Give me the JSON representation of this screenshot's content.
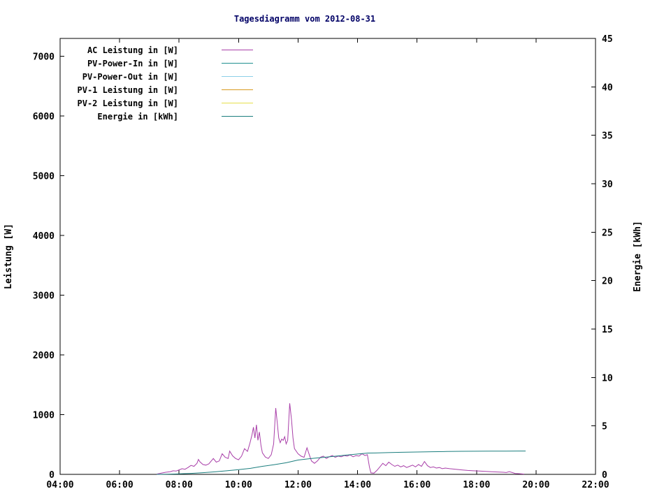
{
  "page": {
    "background": "#ffffff"
  },
  "chart_data": {
    "type": "line",
    "title": "Tagesdiagramm vom 2012-08-31",
    "title_color": "#000066",
    "grid": false,
    "legend_position": "top-left-inside",
    "x_axis": {
      "label": "",
      "range": [
        4,
        22
      ],
      "ticks": [
        {
          "v": 4,
          "label": "04:00"
        },
        {
          "v": 6,
          "label": "06:00"
        },
        {
          "v": 8,
          "label": "08:00"
        },
        {
          "v": 10,
          "label": "10:00"
        },
        {
          "v": 12,
          "label": "12:00"
        },
        {
          "v": 14,
          "label": "14:00"
        },
        {
          "v": 16,
          "label": "16:00"
        },
        {
          "v": 18,
          "label": "18:00"
        },
        {
          "v": 20,
          "label": "20:00"
        },
        {
          "v": 22,
          "label": "22:00"
        }
      ]
    },
    "y_left": {
      "label": "Leistung [W]",
      "range": [
        0,
        7300
      ],
      "ticks": [
        0,
        1000,
        2000,
        3000,
        4000,
        5000,
        6000,
        7000
      ]
    },
    "y_right": {
      "label": "Energie [kWh]",
      "range": [
        0,
        45
      ],
      "ticks": [
        0,
        5,
        10,
        15,
        20,
        25,
        30,
        35,
        40,
        45
      ]
    },
    "series": [
      {
        "name": "AC Leistung in [W]",
        "color": "#A93FA9",
        "axis": "left",
        "points": [
          [
            7.25,
            5
          ],
          [
            7.4,
            20
          ],
          [
            7.55,
            35
          ],
          [
            7.7,
            45
          ],
          [
            7.8,
            60
          ],
          [
            7.9,
            55
          ],
          [
            8.0,
            75
          ],
          [
            8.1,
            95
          ],
          [
            8.2,
            85
          ],
          [
            8.3,
            115
          ],
          [
            8.4,
            150
          ],
          [
            8.5,
            135
          ],
          [
            8.6,
            185
          ],
          [
            8.65,
            250
          ],
          [
            8.7,
            210
          ],
          [
            8.8,
            165
          ],
          [
            8.9,
            155
          ],
          [
            9.0,
            175
          ],
          [
            9.1,
            235
          ],
          [
            9.15,
            265
          ],
          [
            9.25,
            205
          ],
          [
            9.35,
            225
          ],
          [
            9.45,
            345
          ],
          [
            9.55,
            285
          ],
          [
            9.65,
            265
          ],
          [
            9.7,
            390
          ],
          [
            9.8,
            310
          ],
          [
            9.9,
            265
          ],
          [
            10.0,
            245
          ],
          [
            10.1,
            305
          ],
          [
            10.2,
            430
          ],
          [
            10.3,
            385
          ],
          [
            10.38,
            520
          ],
          [
            10.45,
            660
          ],
          [
            10.5,
            790
          ],
          [
            10.55,
            610
          ],
          [
            10.6,
            830
          ],
          [
            10.65,
            570
          ],
          [
            10.7,
            710
          ],
          [
            10.75,
            490
          ],
          [
            10.8,
            360
          ],
          [
            10.9,
            290
          ],
          [
            11.0,
            265
          ],
          [
            11.1,
            330
          ],
          [
            11.18,
            510
          ],
          [
            11.25,
            1110
          ],
          [
            11.3,
            860
          ],
          [
            11.35,
            610
          ],
          [
            11.4,
            530
          ],
          [
            11.45,
            590
          ],
          [
            11.5,
            570
          ],
          [
            11.55,
            630
          ],
          [
            11.6,
            510
          ],
          [
            11.65,
            570
          ],
          [
            11.72,
            1190
          ],
          [
            11.78,
            910
          ],
          [
            11.83,
            610
          ],
          [
            11.88,
            430
          ],
          [
            11.95,
            380
          ],
          [
            12.0,
            345
          ],
          [
            12.1,
            305
          ],
          [
            12.2,
            285
          ],
          [
            12.3,
            445
          ],
          [
            12.38,
            325
          ],
          [
            12.45,
            225
          ],
          [
            12.55,
            185
          ],
          [
            12.65,
            225
          ],
          [
            12.75,
            285
          ],
          [
            12.85,
            305
          ],
          [
            12.95,
            265
          ],
          [
            13.05,
            295
          ],
          [
            13.15,
            315
          ],
          [
            13.25,
            285
          ],
          [
            13.35,
            305
          ],
          [
            13.45,
            295
          ],
          [
            13.55,
            315
          ],
          [
            13.65,
            305
          ],
          [
            13.75,
            325
          ],
          [
            13.85,
            295
          ],
          [
            13.95,
            315
          ],
          [
            14.05,
            305
          ],
          [
            14.15,
            345
          ],
          [
            14.25,
            315
          ],
          [
            14.33,
            330
          ],
          [
            14.4,
            120
          ],
          [
            14.45,
            25
          ],
          [
            14.55,
            20
          ],
          [
            14.65,
            65
          ],
          [
            14.75,
            125
          ],
          [
            14.85,
            185
          ],
          [
            14.95,
            145
          ],
          [
            15.05,
            205
          ],
          [
            15.15,
            165
          ],
          [
            15.25,
            135
          ],
          [
            15.35,
            155
          ],
          [
            15.45,
            125
          ],
          [
            15.55,
            145
          ],
          [
            15.65,
            115
          ],
          [
            15.75,
            135
          ],
          [
            15.85,
            155
          ],
          [
            15.95,
            125
          ],
          [
            16.05,
            165
          ],
          [
            16.15,
            135
          ],
          [
            16.25,
            215
          ],
          [
            16.35,
            145
          ],
          [
            16.45,
            115
          ],
          [
            16.55,
            125
          ],
          [
            16.65,
            105
          ],
          [
            16.75,
            115
          ],
          [
            16.85,
            95
          ],
          [
            16.95,
            105
          ],
          [
            17.1,
            95
          ],
          [
            17.3,
            85
          ],
          [
            17.5,
            75
          ],
          [
            17.7,
            65
          ],
          [
            17.9,
            60
          ],
          [
            18.1,
            55
          ],
          [
            18.3,
            50
          ],
          [
            18.5,
            45
          ],
          [
            18.7,
            40
          ],
          [
            18.9,
            35
          ],
          [
            19.0,
            30
          ],
          [
            19.1,
            45
          ],
          [
            19.2,
            30
          ],
          [
            19.3,
            15
          ],
          [
            19.45,
            10
          ],
          [
            19.6,
            5
          ]
        ]
      },
      {
        "name": "PV-Power-In in [W]",
        "color": "#209090",
        "axis": "left",
        "points": []
      },
      {
        "name": "PV-Power-Out in [W]",
        "color": "#8CCFE8",
        "axis": "left",
        "points": []
      },
      {
        "name": "PV-1 Leistung in [W]",
        "color": "#D99A1E",
        "axis": "left",
        "points": []
      },
      {
        "name": "PV-2 Leistung in [W]",
        "color": "#E6E04A",
        "axis": "left",
        "points": []
      },
      {
        "name": "Energie in [kWh]",
        "color": "#1B7E7E",
        "axis": "right",
        "points": [
          [
            7.25,
            0
          ],
          [
            7.6,
            0.02
          ],
          [
            8.0,
            0.05
          ],
          [
            8.4,
            0.1
          ],
          [
            8.8,
            0.17
          ],
          [
            9.2,
            0.26
          ],
          [
            9.6,
            0.37
          ],
          [
            10.0,
            0.48
          ],
          [
            10.4,
            0.62
          ],
          [
            10.8,
            0.83
          ],
          [
            11.2,
            1.0
          ],
          [
            11.6,
            1.2
          ],
          [
            12.0,
            1.48
          ],
          [
            12.4,
            1.62
          ],
          [
            12.8,
            1.74
          ],
          [
            13.2,
            1.86
          ],
          [
            13.6,
            1.98
          ],
          [
            14.0,
            2.1
          ],
          [
            14.35,
            2.2
          ],
          [
            14.6,
            2.21
          ],
          [
            15.0,
            2.24
          ],
          [
            15.5,
            2.28
          ],
          [
            16.0,
            2.31
          ],
          [
            16.5,
            2.34
          ],
          [
            17.0,
            2.36
          ],
          [
            17.5,
            2.38
          ],
          [
            18.0,
            2.39
          ],
          [
            18.5,
            2.4
          ],
          [
            19.0,
            2.4
          ],
          [
            19.4,
            2.41
          ],
          [
            19.65,
            2.41
          ]
        ]
      }
    ]
  }
}
